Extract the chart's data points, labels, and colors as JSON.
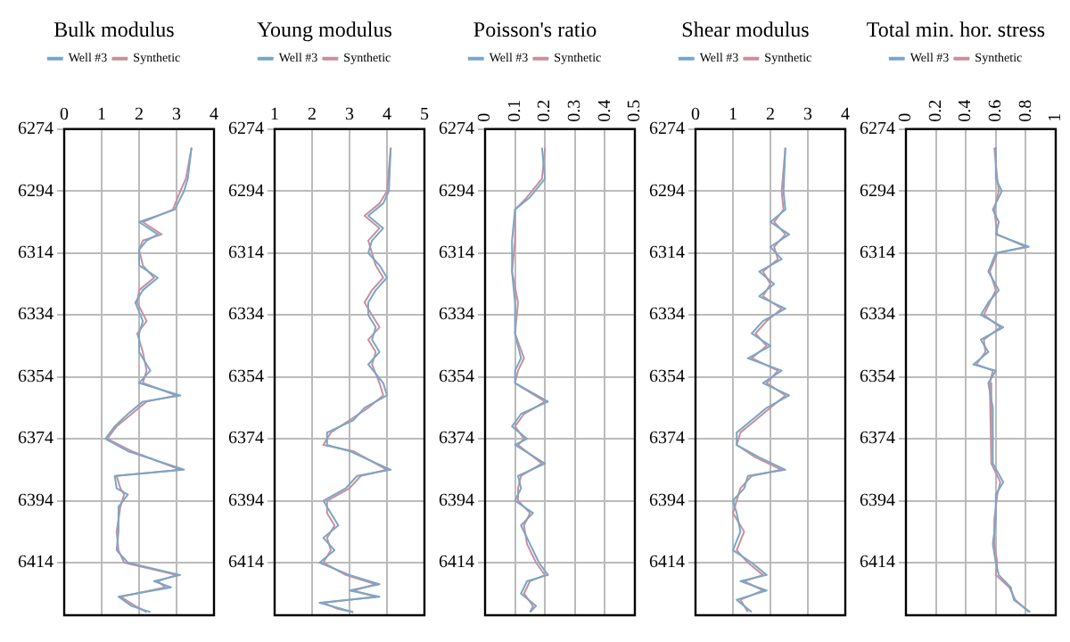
{
  "chart_data": [
    {
      "type": "line",
      "title": "Bulk modulus",
      "xlim": [
        0,
        4
      ],
      "xticks": [
        0,
        1,
        2,
        3,
        4
      ],
      "ylim": [
        6431,
        6274
      ],
      "yticks": [
        6274,
        6294,
        6314,
        6334,
        6354,
        6374,
        6394,
        6414
      ],
      "grid": true,
      "legend": "top",
      "series": [
        {
          "name": "Well #3",
          "color": "#7aa6c8",
          "x": [
            3.4,
            3.3,
            3.2,
            2.95,
            2.0,
            2.5,
            2.2,
            2.0,
            2.0,
            2.5,
            2.1,
            1.9,
            2.1,
            2.0,
            2.0,
            2.3,
            2.0,
            3.1,
            2.1,
            1.7,
            1.35,
            1.1,
            1.7,
            3.2,
            1.35,
            1.4,
            1.7,
            1.45,
            1.45,
            1.4,
            1.7,
            3.1,
            2.4,
            2.85,
            1.45,
            1.8,
            2.3
          ],
          "values": [
            6280,
            6290,
            6294,
            6300,
            6304,
            6308,
            6310,
            6313,
            6318,
            6322,
            6326,
            6330,
            6336,
            6340,
            6346,
            6352,
            6356,
            6360,
            6362,
            6366,
            6370,
            6374,
            6378,
            6384,
            6386,
            6390,
            6392,
            6396,
            6404,
            6410,
            6414,
            6418,
            6420,
            6422,
            6425,
            6428,
            6430
          ]
        },
        {
          "name": "Synthetic",
          "color": "#c8909c",
          "x": [
            3.4,
            3.25,
            3.1,
            2.9,
            2.1,
            2.6,
            2.1,
            2.0,
            2.1,
            2.4,
            2.0,
            1.95,
            2.2,
            1.95,
            2.1,
            2.2,
            2.1,
            3.0,
            2.2,
            1.8,
            1.4,
            1.15,
            1.8,
            3.1,
            1.4,
            1.5,
            1.6,
            1.5,
            1.4,
            1.45,
            1.6,
            3.0,
            2.5,
            2.7,
            1.5,
            1.9,
            2.2
          ],
          "values": [
            6280,
            6290,
            6294,
            6300,
            6304,
            6308,
            6310,
            6313,
            6318,
            6322,
            6326,
            6330,
            6336,
            6340,
            6346,
            6352,
            6356,
            6360,
            6362,
            6366,
            6370,
            6374,
            6378,
            6384,
            6386,
            6390,
            6392,
            6396,
            6404,
            6410,
            6414,
            6418,
            6420,
            6422,
            6425,
            6428,
            6430
          ]
        }
      ]
    },
    {
      "type": "line",
      "title": "Young modulus",
      "xlim": [
        1,
        5
      ],
      "xticks": [
        1,
        2,
        3,
        4,
        5
      ],
      "ylim": [
        6431,
        6274
      ],
      "yticks": [
        6274,
        6294,
        6314,
        6334,
        6354,
        6374,
        6394,
        6414
      ],
      "grid": true,
      "legend": "top",
      "series": [
        {
          "name": "Well #3",
          "color": "#7aa6c8",
          "x": [
            4.1,
            4.05,
            3.9,
            3.5,
            3.9,
            3.6,
            3.5,
            3.8,
            4.0,
            3.7,
            3.5,
            3.5,
            3.7,
            3.6,
            3.8,
            3.5,
            3.9,
            4.0,
            3.4,
            3.1,
            2.4,
            2.4,
            3.0,
            4.1,
            3.2,
            2.9,
            2.3,
            2.5,
            2.7,
            2.3,
            2.6,
            2.2,
            3.0,
            3.8,
            3.0,
            3.8,
            2.2,
            2.8,
            3.1
          ],
          "values": [
            6280,
            6294,
            6298,
            6302,
            6306,
            6310,
            6314,
            6318,
            6322,
            6326,
            6330,
            6334,
            6338,
            6342,
            6346,
            6350,
            6356,
            6360,
            6364,
            6368,
            6372,
            6376,
            6378,
            6384,
            6386,
            6390,
            6394,
            6398,
            6402,
            6406,
            6410,
            6414,
            6418,
            6421,
            6423,
            6425,
            6427,
            6429,
            6430
          ]
        },
        {
          "name": "Synthetic",
          "color": "#c8909c",
          "x": [
            4.1,
            4.0,
            3.8,
            3.4,
            3.8,
            3.5,
            3.6,
            3.7,
            3.9,
            3.6,
            3.4,
            3.6,
            3.8,
            3.5,
            3.7,
            3.6,
            3.8,
            3.9,
            3.5,
            3.0,
            2.5,
            2.3,
            3.1,
            4.0,
            3.3,
            3.0,
            2.4,
            2.4,
            2.6,
            2.4,
            2.5,
            2.3,
            2.9,
            3.7,
            3.1,
            3.7,
            2.3,
            2.7,
            3.1
          ],
          "values": [
            6280,
            6294,
            6298,
            6302,
            6306,
            6310,
            6314,
            6318,
            6322,
            6326,
            6330,
            6334,
            6338,
            6342,
            6346,
            6350,
            6356,
            6360,
            6364,
            6368,
            6372,
            6376,
            6378,
            6384,
            6386,
            6390,
            6394,
            6398,
            6402,
            6406,
            6410,
            6414,
            6418,
            6421,
            6423,
            6425,
            6427,
            6429,
            6430
          ]
        }
      ]
    },
    {
      "type": "line",
      "title": "Poisson's ratio",
      "xlim": [
        0,
        0.5
      ],
      "xticks": [
        0,
        0.1,
        0.2,
        0.3,
        0.4,
        0.5
      ],
      "ylim": [
        6431,
        6274
      ],
      "yticks": [
        6274,
        6294,
        6314,
        6334,
        6354,
        6374,
        6394,
        6414
      ],
      "grid": true,
      "legend": "top",
      "series": [
        {
          "name": "Well #3",
          "color": "#7aa6c8",
          "x": [
            0.19,
            0.2,
            0.15,
            0.1,
            0.09,
            0.09,
            0.1,
            0.1,
            0.12,
            0.1,
            0.1,
            0.21,
            0.12,
            0.09,
            0.14,
            0.1,
            0.2,
            0.11,
            0.12,
            0.1,
            0.16,
            0.12,
            0.15,
            0.18,
            0.21,
            0.14,
            0.12,
            0.17,
            0.15
          ],
          "values": [
            6280,
            6290,
            6296,
            6300,
            6310,
            6320,
            6330,
            6340,
            6348,
            6352,
            6356,
            6362,
            6366,
            6370,
            6374,
            6376,
            6382,
            6386,
            6390,
            6394,
            6398,
            6402,
            6408,
            6414,
            6418,
            6420,
            6424,
            6428,
            6430
          ]
        },
        {
          "name": "Synthetic",
          "color": "#c8909c",
          "x": [
            0.2,
            0.19,
            0.14,
            0.1,
            0.1,
            0.09,
            0.11,
            0.1,
            0.13,
            0.11,
            0.1,
            0.2,
            0.13,
            0.1,
            0.13,
            0.11,
            0.19,
            0.12,
            0.11,
            0.11,
            0.15,
            0.13,
            0.14,
            0.17,
            0.2,
            0.15,
            0.13,
            0.16,
            0.15
          ],
          "values": [
            6280,
            6290,
            6296,
            6300,
            6310,
            6320,
            6330,
            6340,
            6348,
            6352,
            6356,
            6362,
            6366,
            6370,
            6374,
            6376,
            6382,
            6386,
            6390,
            6394,
            6398,
            6402,
            6408,
            6414,
            6418,
            6420,
            6424,
            6428,
            6430
          ]
        }
      ]
    },
    {
      "type": "line",
      "title": "Shear modulus",
      "xlim": [
        0,
        4
      ],
      "xticks": [
        0,
        1,
        2,
        3,
        4
      ],
      "ylim": [
        6431,
        6274
      ],
      "yticks": [
        6274,
        6294,
        6314,
        6334,
        6354,
        6374,
        6394,
        6414
      ],
      "grid": true,
      "legend": "top",
      "series": [
        {
          "name": "Well #3",
          "color": "#7aa6c8",
          "x": [
            2.4,
            2.35,
            2.4,
            2.0,
            2.5,
            2.0,
            2.3,
            1.7,
            2.1,
            1.7,
            2.4,
            1.8,
            1.5,
            2.0,
            1.4,
            2.3,
            1.8,
            2.5,
            1.9,
            1.5,
            1.1,
            1.1,
            1.7,
            2.4,
            1.4,
            1.3,
            1.0,
            1.1,
            1.2,
            1.0,
            1.5,
            1.9,
            1.2,
            1.9,
            1.1,
            1.5
          ],
          "values": [
            6280,
            6294,
            6300,
            6304,
            6308,
            6312,
            6316,
            6320,
            6324,
            6328,
            6332,
            6336,
            6340,
            6344,
            6348,
            6352,
            6356,
            6360,
            6364,
            6368,
            6372,
            6376,
            6380,
            6384,
            6386,
            6390,
            6394,
            6398,
            6404,
            6410,
            6414,
            6418,
            6420,
            6423,
            6426,
            6430
          ]
        },
        {
          "name": "Synthetic",
          "color": "#c8909c",
          "x": [
            2.4,
            2.3,
            2.35,
            2.1,
            2.4,
            2.1,
            2.2,
            1.8,
            2.0,
            1.8,
            2.3,
            1.9,
            1.6,
            1.9,
            1.5,
            2.2,
            1.9,
            2.4,
            2.0,
            1.6,
            1.2,
            1.1,
            1.6,
            2.3,
            1.5,
            1.2,
            1.1,
            1.0,
            1.3,
            1.1,
            1.4,
            1.8,
            1.3,
            1.8,
            1.2,
            1.4
          ],
          "values": [
            6280,
            6294,
            6300,
            6304,
            6308,
            6312,
            6316,
            6320,
            6324,
            6328,
            6332,
            6336,
            6340,
            6344,
            6348,
            6352,
            6356,
            6360,
            6364,
            6368,
            6372,
            6376,
            6380,
            6384,
            6386,
            6390,
            6394,
            6398,
            6404,
            6410,
            6414,
            6418,
            6420,
            6423,
            6426,
            6430
          ]
        }
      ]
    },
    {
      "type": "line",
      "title": "Total min. hor. stress",
      "xlim": [
        0,
        1
      ],
      "xticks": [
        0,
        0.2,
        0.4,
        0.6,
        0.8,
        1
      ],
      "ylim": [
        6431,
        6274
      ],
      "yticks": [
        6274,
        6294,
        6314,
        6334,
        6354,
        6374,
        6394,
        6414
      ],
      "grid": true,
      "legend": "top",
      "series": [
        {
          "name": "Well #3",
          "color": "#7aa6c8",
          "x": [
            0.6,
            0.6,
            0.64,
            0.58,
            0.62,
            0.6,
            0.82,
            0.6,
            0.55,
            0.62,
            0.55,
            0.5,
            0.65,
            0.5,
            0.55,
            0.45,
            0.6,
            0.55,
            0.58,
            0.58,
            0.65,
            0.6,
            0.6,
            0.58,
            0.6,
            0.62,
            0.7,
            0.72,
            0.83
          ],
          "values": [
            6280,
            6290,
            6294,
            6300,
            6304,
            6308,
            6312,
            6314,
            6320,
            6326,
            6330,
            6334,
            6338,
            6342,
            6346,
            6350,
            6352,
            6356,
            6364,
            6382,
            6388,
            6392,
            6400,
            6408,
            6414,
            6418,
            6422,
            6426,
            6430
          ]
        },
        {
          "name": "Synthetic",
          "color": "#c8909c",
          "x": [
            0.59,
            0.61,
            0.62,
            0.59,
            0.6,
            0.61,
            0.8,
            0.61,
            0.56,
            0.6,
            0.56,
            0.52,
            0.63,
            0.52,
            0.53,
            0.47,
            0.58,
            0.56,
            0.57,
            0.63,
            0.61,
            0.59,
            0.59,
            0.61,
            0.6,
            0.69,
            0.73,
            0.82
          ],
          "values": [
            6280,
            6290,
            6294,
            6300,
            6304,
            6308,
            6312,
            6314,
            6320,
            6326,
            6330,
            6334,
            6338,
            6342,
            6346,
            6350,
            6352,
            6356,
            6382,
            6388,
            6392,
            6400,
            6408,
            6414,
            6418,
            6422,
            6426,
            6430
          ]
        }
      ]
    }
  ]
}
